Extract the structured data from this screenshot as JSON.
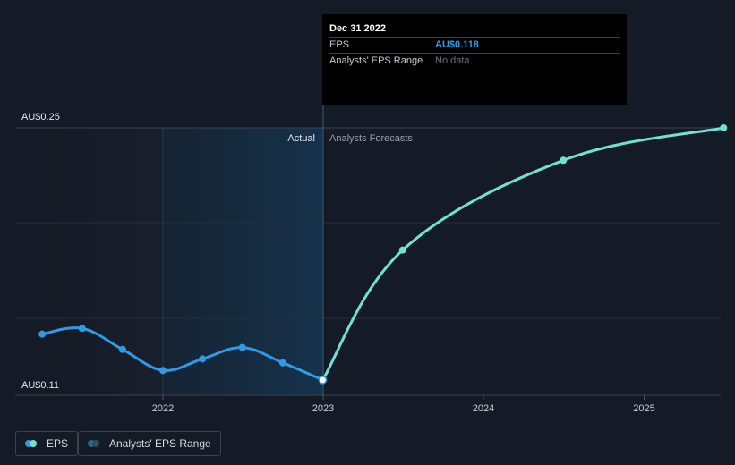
{
  "chart_data": {
    "type": "line",
    "y_range": [
      0.11,
      0.25
    ],
    "y_tick_labels": [
      "AU$0.25",
      "AU$0.11"
    ],
    "x_tick_labels": [
      "2022",
      "2023",
      "2024",
      "2025"
    ],
    "region_labels": {
      "actual": "Actual",
      "forecast": "Analysts Forecasts"
    },
    "series": [
      {
        "name": "EPS",
        "kind": "actual",
        "points": [
          {
            "x": "2021-04-01",
            "y": 0.142
          },
          {
            "x": "2021-07-01",
            "y": 0.145
          },
          {
            "x": "2021-10-01",
            "y": 0.134
          },
          {
            "x": "2022-01-01",
            "y": 0.123
          },
          {
            "x": "2022-04-01",
            "y": 0.129
          },
          {
            "x": "2022-07-01",
            "y": 0.135
          },
          {
            "x": "2022-10-01",
            "y": 0.127
          },
          {
            "x": "2022-12-31",
            "y": 0.118
          }
        ]
      },
      {
        "name": "EPS",
        "kind": "forecast",
        "points": [
          {
            "x": "2022-12-31",
            "y": 0.118
          },
          {
            "x": "2023-07-01",
            "y": 0.186
          },
          {
            "x": "2024-07-01",
            "y": 0.233
          },
          {
            "x": "2025-07-01",
            "y": 0.25
          }
        ]
      }
    ],
    "colors": {
      "actual_line": "#2f9be8",
      "forecast_line": "#6fe3d3",
      "highlight_band": "#16324b",
      "background": "#151b26"
    }
  },
  "tooltip": {
    "date": "Dec 31 2022",
    "eps_label": "EPS",
    "eps_value": "AU$0.118",
    "range_label": "Analysts' EPS Range",
    "range_value": "No data"
  },
  "legend": {
    "eps_label": "EPS",
    "range_label": "Analysts' EPS Range",
    "eps_colors": [
      "#2f9be8",
      "#6fe3d3"
    ],
    "range_colors": [
      "#2c6a8a",
      "#2f5058"
    ]
  }
}
